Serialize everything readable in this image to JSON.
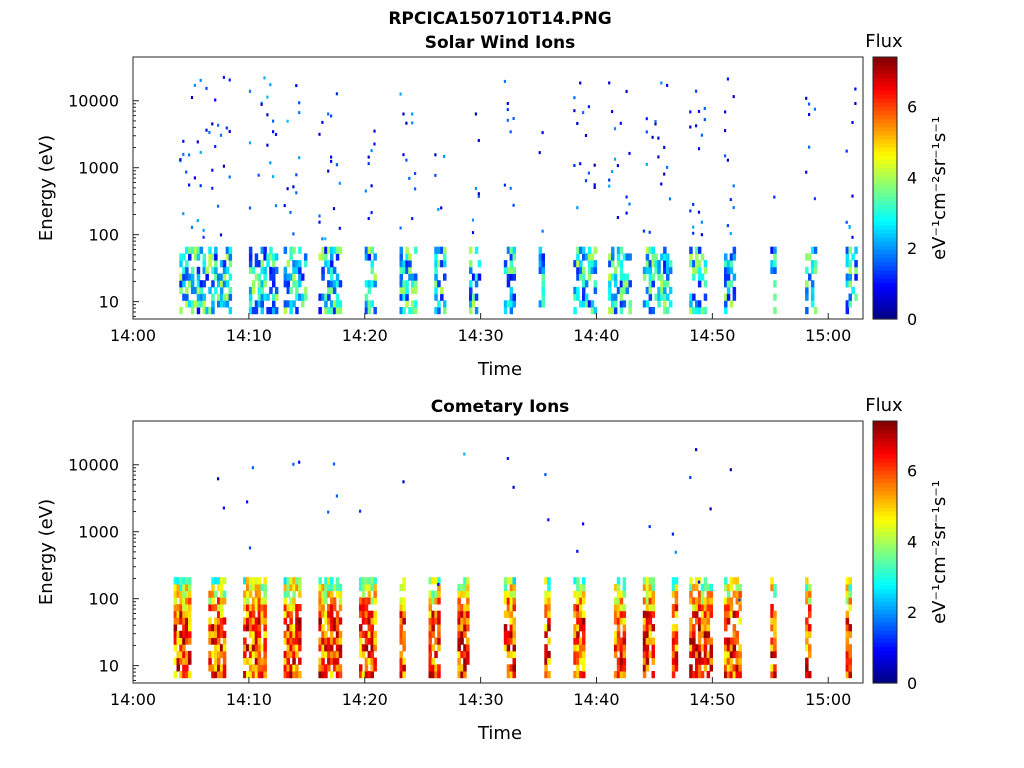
{
  "figure_title": "RPCICA150710T14.PNG",
  "chart_data": [
    {
      "type": "heatmap",
      "title": "Solar Wind Ions",
      "xlabel": "Time",
      "ylabel": "Energy (eV)",
      "xlim": [
        "14:00",
        "15:03"
      ],
      "ylim": [
        5.5,
        45000
      ],
      "yscale": "log",
      "x_ticks": [
        "14:00",
        "14:10",
        "14:20",
        "14:30",
        "14:40",
        "14:50",
        "15:00"
      ],
      "y_ticks": [
        "10",
        "100",
        "1000",
        "10000"
      ],
      "colorbar": {
        "title": "Flux",
        "label": "eV⁻¹cm⁻²sr⁻¹s⁻¹",
        "range": [
          0,
          7.4
        ],
        "ticks": [
          "0",
          "2",
          "4",
          "6"
        ],
        "colormap": "jet"
      },
      "intensity": "low",
      "active_intervals_min": [
        [
          4,
          8.5
        ],
        [
          10,
          12.5
        ],
        [
          13,
          15
        ],
        [
          16,
          18
        ],
        [
          20,
          21
        ],
        [
          23,
          24.5
        ],
        [
          26,
          27
        ],
        [
          29,
          30
        ],
        [
          32,
          33
        ],
        [
          35,
          35.5
        ],
        [
          38,
          40
        ],
        [
          41,
          43
        ],
        [
          44,
          46.5
        ],
        [
          48,
          49.5
        ],
        [
          51,
          52
        ],
        [
          55,
          55.5
        ],
        [
          58,
          59
        ],
        [
          61.5,
          62.5
        ]
      ]
    },
    {
      "type": "heatmap",
      "title": "Cometary Ions",
      "xlabel": "Time",
      "ylabel": "Energy (eV)",
      "xlim": [
        "14:00",
        "15:03"
      ],
      "ylim": [
        5.5,
        45000
      ],
      "yscale": "log",
      "x_ticks": [
        "14:00",
        "14:10",
        "14:20",
        "14:30",
        "14:40",
        "14:50",
        "15:00"
      ],
      "y_ticks": [
        "10",
        "100",
        "1000",
        "10000"
      ],
      "colorbar": {
        "title": "Flux",
        "label": "eV⁻¹cm⁻²sr⁻¹s⁻¹",
        "range": [
          0,
          7.4
        ],
        "ticks": [
          "0",
          "2",
          "4",
          "6"
        ],
        "colormap": "jet"
      },
      "intensity": "high",
      "active_intervals_min": [
        [
          3.5,
          5
        ],
        [
          6.5,
          8
        ],
        [
          9.5,
          11.5
        ],
        [
          13,
          14.5
        ],
        [
          16,
          18
        ],
        [
          19.5,
          21
        ],
        [
          23,
          23.5
        ],
        [
          25.5,
          26.5
        ],
        [
          28,
          29
        ],
        [
          32,
          33
        ],
        [
          35.5,
          36
        ],
        [
          38,
          39
        ],
        [
          41.5,
          42.5
        ],
        [
          44,
          45
        ],
        [
          46.5,
          47
        ],
        [
          48,
          50
        ],
        [
          51,
          52.5
        ],
        [
          55,
          55.5
        ],
        [
          58,
          58.5
        ],
        [
          61.5,
          62
        ]
      ]
    }
  ]
}
